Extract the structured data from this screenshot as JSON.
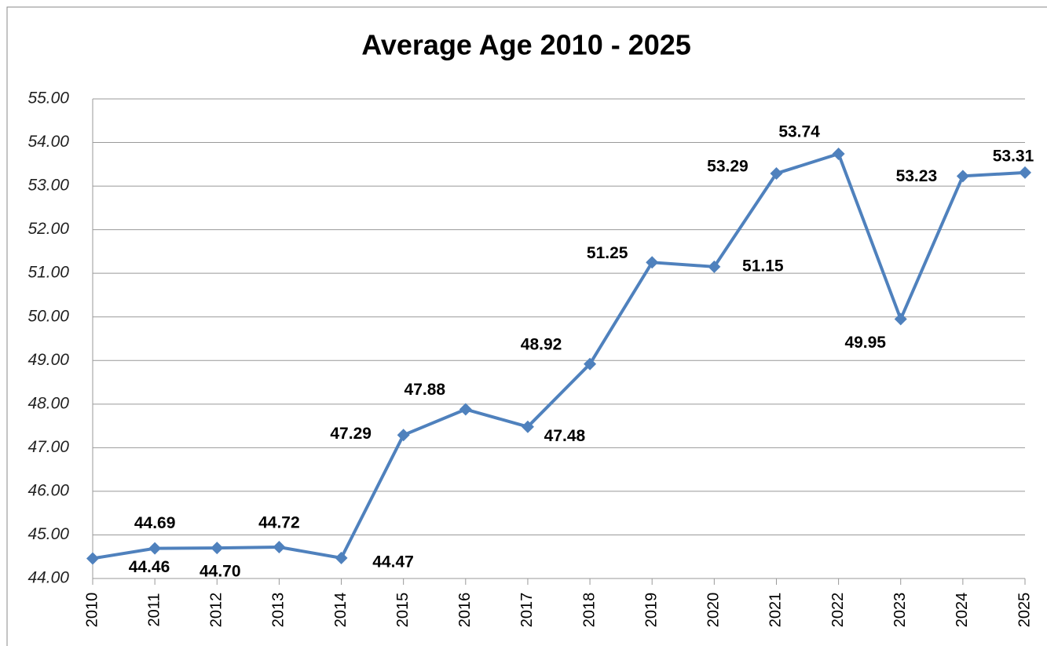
{
  "chart_data": {
    "type": "line",
    "title": "Average Age 2010 - 2025",
    "categories": [
      "2010",
      "2011",
      "2012",
      "2013",
      "2014",
      "2015",
      "2016",
      "2017",
      "2018",
      "2019",
      "2020",
      "2021",
      "2022",
      "2023",
      "2024",
      "2025"
    ],
    "series": [
      {
        "name": "Average Age",
        "color": "#4f81bd",
        "values": [
          44.46,
          44.69,
          44.7,
          44.72,
          44.47,
          47.29,
          47.88,
          47.48,
          48.92,
          51.25,
          51.15,
          53.29,
          53.74,
          49.95,
          53.23,
          53.31
        ],
        "value_labels": [
          "44.46",
          "44.69",
          "44.70",
          "44.72",
          "44.47",
          "47.29",
          "47.88",
          "47.48",
          "48.92",
          "51.25",
          "51.15",
          "53.29",
          "53.74",
          "49.95",
          "53.23",
          "53.31"
        ]
      }
    ],
    "ylim": [
      44,
      55
    ],
    "yticks": [
      {
        "value": 44,
        "label": "44.00"
      },
      {
        "value": 45,
        "label": "45.00"
      },
      {
        "value": 46,
        "label": "46.00"
      },
      {
        "value": 47,
        "label": "47.00"
      },
      {
        "value": 48,
        "label": "48.00"
      },
      {
        "value": 49,
        "label": "49.00"
      },
      {
        "value": 50,
        "label": "50.00"
      },
      {
        "value": 51,
        "label": "51.00"
      },
      {
        "value": 52,
        "label": "52.00"
      },
      {
        "value": 53,
        "label": "53.00"
      },
      {
        "value": 54,
        "label": "54.00"
      },
      {
        "value": 55,
        "label": "55.00"
      }
    ],
    "grid": true
  }
}
